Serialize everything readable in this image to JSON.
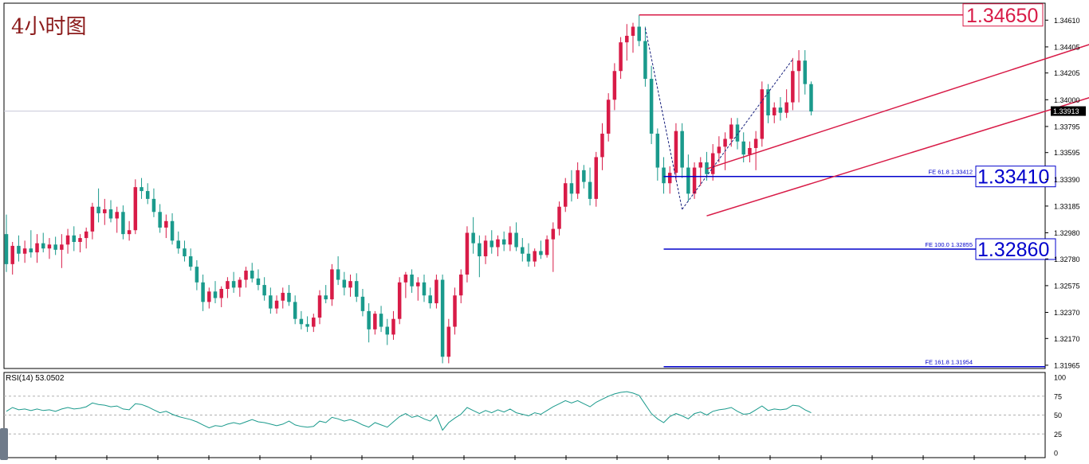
{
  "chart_data": {
    "type": "candlestick",
    "title": "4小时图",
    "price_axis": {
      "ticks": [
        1.3461,
        1.34405,
        1.34205,
        1.34,
        1.33795,
        1.33595,
        1.3339,
        1.33185,
        1.3298,
        1.3278,
        1.32575,
        1.3237,
        1.3217,
        1.31965
      ],
      "tick_labels": [
        "1.34610",
        "1.34405",
        "1.34205",
        "1.34000",
        "1.33795",
        "1.33595",
        "1.33390",
        "1.33185",
        "1.32980",
        "1.32780",
        "1.32575",
        "1.32370",
        "1.32170",
        "1.31965"
      ],
      "range": [
        1.3194,
        1.3474
      ],
      "current_price": 1.33913,
      "current_price_label": "1.33913"
    },
    "colors": {
      "bull": "#d81b47",
      "bear": "#1a9a8c",
      "fe_line": "#0000cc",
      "channel": "#d81b47",
      "rsi_line": "#1a9a8c",
      "current_price_bg": "#000000"
    },
    "candles": [
      [
        1.3297,
        1.3312,
        1.3268,
        1.3274
      ],
      [
        1.3274,
        1.3291,
        1.3266,
        1.3288
      ],
      [
        1.3288,
        1.3296,
        1.3276,
        1.3282
      ],
      [
        1.3282,
        1.3292,
        1.3275,
        1.3286
      ],
      [
        1.3286,
        1.33,
        1.3279,
        1.3283
      ],
      [
        1.3283,
        1.3297,
        1.3275,
        1.329
      ],
      [
        1.329,
        1.3298,
        1.3283,
        1.3286
      ],
      [
        1.3286,
        1.3294,
        1.3278,
        1.3289
      ],
      [
        1.3289,
        1.3295,
        1.3281,
        1.3285
      ],
      [
        1.3285,
        1.3297,
        1.3271,
        1.3289
      ],
      [
        1.3289,
        1.3301,
        1.3282,
        1.3296
      ],
      [
        1.3296,
        1.3303,
        1.3284,
        1.3291
      ],
      [
        1.3291,
        1.3297,
        1.3283,
        1.3294
      ],
      [
        1.3294,
        1.3302,
        1.3286,
        1.3299
      ],
      [
        1.3299,
        1.3321,
        1.3293,
        1.3318
      ],
      [
        1.3318,
        1.3332,
        1.3306,
        1.3313
      ],
      [
        1.3313,
        1.3324,
        1.3304,
        1.3316
      ],
      [
        1.3316,
        1.3323,
        1.3306,
        1.3309
      ],
      [
        1.3309,
        1.3318,
        1.3298,
        1.3314
      ],
      [
        1.3314,
        1.3319,
        1.3293,
        1.3297
      ],
      [
        1.3297,
        1.3307,
        1.3292,
        1.33
      ],
      [
        1.33,
        1.3339,
        1.3297,
        1.3333
      ],
      [
        1.3333,
        1.334,
        1.3324,
        1.333
      ],
      [
        1.333,
        1.3336,
        1.332,
        1.3324
      ],
      [
        1.3324,
        1.3332,
        1.331,
        1.3314
      ],
      [
        1.3314,
        1.332,
        1.3298,
        1.3302
      ],
      [
        1.3302,
        1.3312,
        1.3294,
        1.3307
      ],
      [
        1.3307,
        1.3313,
        1.3289,
        1.3292
      ],
      [
        1.3292,
        1.3299,
        1.3282,
        1.3286
      ],
      [
        1.3286,
        1.3292,
        1.3276,
        1.328
      ],
      [
        1.328,
        1.3286,
        1.3269,
        1.3272
      ],
      [
        1.3272,
        1.3277,
        1.3254,
        1.326
      ],
      [
        1.326,
        1.3266,
        1.3238,
        1.3245
      ],
      [
        1.3245,
        1.3256,
        1.324,
        1.3253
      ],
      [
        1.3253,
        1.3261,
        1.3244,
        1.3248
      ],
      [
        1.3248,
        1.3257,
        1.3241,
        1.3255
      ],
      [
        1.3255,
        1.3264,
        1.3248,
        1.3261
      ],
      [
        1.3261,
        1.3268,
        1.3252,
        1.3256
      ],
      [
        1.3256,
        1.3264,
        1.3249,
        1.3262
      ],
      [
        1.3262,
        1.3272,
        1.3256,
        1.3269
      ],
      [
        1.3269,
        1.3275,
        1.326,
        1.3263
      ],
      [
        1.3263,
        1.327,
        1.3254,
        1.3258
      ],
      [
        1.3258,
        1.3264,
        1.3246,
        1.325
      ],
      [
        1.325,
        1.3256,
        1.3236,
        1.324
      ],
      [
        1.324,
        1.325,
        1.3236,
        1.3246
      ],
      [
        1.3246,
        1.3256,
        1.324,
        1.3252
      ],
      [
        1.3252,
        1.3258,
        1.3242,
        1.3245
      ],
      [
        1.3245,
        1.325,
        1.3228,
        1.3232
      ],
      [
        1.3232,
        1.3238,
        1.3224,
        1.3228
      ],
      [
        1.3228,
        1.3234,
        1.3222,
        1.3226
      ],
      [
        1.3226,
        1.3236,
        1.3222,
        1.3233
      ],
      [
        1.3233,
        1.3254,
        1.3228,
        1.325
      ],
      [
        1.325,
        1.3258,
        1.3244,
        1.3247
      ],
      [
        1.3247,
        1.3274,
        1.3242,
        1.327
      ],
      [
        1.327,
        1.328,
        1.3258,
        1.3262
      ],
      [
        1.3262,
        1.3268,
        1.325,
        1.3256
      ],
      [
        1.3256,
        1.3266,
        1.3249,
        1.3261
      ],
      [
        1.3261,
        1.3267,
        1.3245,
        1.3249
      ],
      [
        1.3249,
        1.3255,
        1.3234,
        1.3238
      ],
      [
        1.3238,
        1.3244,
        1.3214,
        1.3224
      ],
      [
        1.3224,
        1.3238,
        1.322,
        1.3236
      ],
      [
        1.3236,
        1.3242,
        1.3222,
        1.3226
      ],
      [
        1.3226,
        1.3232,
        1.3212,
        1.322
      ],
      [
        1.322,
        1.3238,
        1.3216,
        1.3232
      ],
      [
        1.3232,
        1.3264,
        1.3228,
        1.326
      ],
      [
        1.326,
        1.3268,
        1.3248,
        1.3266
      ],
      [
        1.3266,
        1.327,
        1.3252,
        1.3257
      ],
      [
        1.3257,
        1.3264,
        1.3246,
        1.326
      ],
      [
        1.326,
        1.3266,
        1.3245,
        1.325
      ],
      [
        1.325,
        1.3256,
        1.324,
        1.3244
      ],
      [
        1.3244,
        1.3266,
        1.324,
        1.3262
      ],
      [
        1.3262,
        1.3266,
        1.3198,
        1.3203
      ],
      [
        1.3203,
        1.3232,
        1.3198,
        1.3226
      ],
      [
        1.3226,
        1.3256,
        1.322,
        1.325
      ],
      [
        1.325,
        1.327,
        1.3244,
        1.3266
      ],
      [
        1.3266,
        1.3303,
        1.326,
        1.3298
      ],
      [
        1.3298,
        1.331,
        1.3282,
        1.329
      ],
      [
        1.329,
        1.3296,
        1.3264,
        1.328
      ],
      [
        1.328,
        1.3296,
        1.3274,
        1.3292
      ],
      [
        1.3292,
        1.33,
        1.3282,
        1.3287
      ],
      [
        1.3287,
        1.3296,
        1.328,
        1.3293
      ],
      [
        1.3293,
        1.3299,
        1.3284,
        1.3289
      ],
      [
        1.3289,
        1.3303,
        1.3284,
        1.3298
      ],
      [
        1.3298,
        1.3306,
        1.3284,
        1.3287
      ],
      [
        1.3287,
        1.3294,
        1.3276,
        1.3282
      ],
      [
        1.3282,
        1.329,
        1.3272,
        1.3276
      ],
      [
        1.3276,
        1.3286,
        1.3272,
        1.3284
      ],
      [
        1.3284,
        1.3292,
        1.3278,
        1.3281
      ],
      [
        1.3281,
        1.3296,
        1.3279,
        1.3293
      ],
      [
        1.3293,
        1.3306,
        1.3268,
        1.3301
      ],
      [
        1.3301,
        1.3322,
        1.3296,
        1.3318
      ],
      [
        1.3318,
        1.334,
        1.3314,
        1.3336
      ],
      [
        1.3336,
        1.3346,
        1.3322,
        1.3328
      ],
      [
        1.3328,
        1.3352,
        1.3324,
        1.3346
      ],
      [
        1.3346,
        1.335,
        1.3332,
        1.3337
      ],
      [
        1.3337,
        1.3348,
        1.3319,
        1.3324
      ],
      [
        1.3324,
        1.336,
        1.3318,
        1.3356
      ],
      [
        1.3356,
        1.3382,
        1.3346,
        1.3374
      ],
      [
        1.3374,
        1.3405,
        1.3368,
        1.34
      ],
      [
        1.34,
        1.3428,
        1.3392,
        1.3422
      ],
      [
        1.3422,
        1.3448,
        1.3416,
        1.3444
      ],
      [
        1.3444,
        1.3458,
        1.343,
        1.3449
      ],
      [
        1.3449,
        1.3459,
        1.3436,
        1.3456
      ],
      [
        1.3456,
        1.3465,
        1.3441,
        1.3445
      ],
      [
        1.3445,
        1.3456,
        1.341,
        1.3416
      ],
      [
        1.3416,
        1.3426,
        1.3366,
        1.3374
      ],
      [
        1.3374,
        1.3378,
        1.3338,
        1.3348
      ],
      [
        1.3348,
        1.3356,
        1.3328,
        1.3336
      ],
      [
        1.3336,
        1.3349,
        1.3328,
        1.3344
      ],
      [
        1.3344,
        1.3382,
        1.3338,
        1.3376
      ],
      [
        1.3376,
        1.3382,
        1.334,
        1.3348
      ],
      [
        1.3348,
        1.3358,
        1.3322,
        1.3328
      ],
      [
        1.3328,
        1.3352,
        1.3324,
        1.3348
      ],
      [
        1.3348,
        1.3356,
        1.3334,
        1.3352
      ],
      [
        1.3352,
        1.336,
        1.3338,
        1.3343
      ],
      [
        1.3343,
        1.3366,
        1.3338,
        1.3359
      ],
      [
        1.3359,
        1.3372,
        1.3352,
        1.3364
      ],
      [
        1.3364,
        1.3375,
        1.3346,
        1.337
      ],
      [
        1.337,
        1.3386,
        1.3364,
        1.3381
      ],
      [
        1.3381,
        1.3386,
        1.3362,
        1.3368
      ],
      [
        1.3368,
        1.3375,
        1.3352,
        1.3358
      ],
      [
        1.3358,
        1.3368,
        1.3352,
        1.3363
      ],
      [
        1.3363,
        1.3376,
        1.3346,
        1.337
      ],
      [
        1.337,
        1.3414,
        1.3364,
        1.3408
      ],
      [
        1.3408,
        1.3412,
        1.3382,
        1.3388
      ],
      [
        1.3388,
        1.3398,
        1.3382,
        1.3394
      ],
      [
        1.3394,
        1.3402,
        1.3384,
        1.339
      ],
      [
        1.339,
        1.3408,
        1.3386,
        1.3398
      ],
      [
        1.3398,
        1.3432,
        1.3392,
        1.3422
      ],
      [
        1.3422,
        1.3438,
        1.3398,
        1.343
      ],
      [
        1.343,
        1.3438,
        1.3404,
        1.3412
      ],
      [
        1.3412,
        1.3414,
        1.3388,
        1.3391
      ]
    ],
    "fe_levels": [
      {
        "label": "FE 61.8  1.33412",
        "price": 1.33412,
        "box_label": "1.33410"
      },
      {
        "label": "FE 100.0  1.32855",
        "price": 1.32855,
        "box_label": "1.32860"
      },
      {
        "label": "FE 161.8  1.31954",
        "price": 1.31954,
        "box_label": ""
      }
    ],
    "resistance": {
      "price": 1.3465,
      "box_label": "1.34650"
    },
    "channel": {
      "upper": [
        [
          39,
          1.3347
        ],
        [
          105,
          1.3448
        ]
      ],
      "lower": [
        [
          39,
          1.3311
        ],
        [
          105,
          1.3407
        ]
      ]
    },
    "zigzag": [
      [
        104,
        1.3455
      ],
      [
        110,
        1.3316
      ],
      [
        128,
        1.3431
      ]
    ],
    "rsi": {
      "label": "RSI(14) 53.0502",
      "levels": [
        75,
        50,
        25
      ],
      "tick_labels": [
        "100",
        "75",
        "50",
        "25",
        "0"
      ],
      "range": [
        0,
        100
      ],
      "values": [
        55,
        60,
        57,
        58,
        56,
        58,
        56,
        57,
        55,
        58,
        60,
        58,
        59,
        61,
        66,
        64,
        63,
        61,
        62,
        58,
        57,
        65,
        64,
        61,
        57,
        53,
        55,
        51,
        48,
        46,
        44,
        41,
        37,
        33,
        36,
        35,
        38,
        40,
        38,
        41,
        44,
        41,
        40,
        38,
        36,
        38,
        42,
        37,
        35,
        34,
        35,
        42,
        40,
        47,
        45,
        42,
        44,
        41,
        37,
        34,
        40,
        37,
        34,
        41,
        48,
        52,
        47,
        49,
        45,
        42,
        50,
        30,
        40,
        46,
        51,
        60,
        56,
        52,
        56,
        53,
        57,
        54,
        58,
        53,
        51,
        49,
        53,
        51,
        56,
        61,
        65,
        69,
        66,
        69,
        65,
        61,
        67,
        71,
        75,
        78,
        80,
        81,
        79,
        76,
        64,
        52,
        45,
        40,
        48,
        52,
        49,
        45,
        52,
        54,
        50,
        55,
        57,
        58,
        60,
        55,
        51,
        52,
        57,
        62,
        56,
        58,
        57,
        58,
        63,
        62,
        57,
        53
      ]
    }
  }
}
